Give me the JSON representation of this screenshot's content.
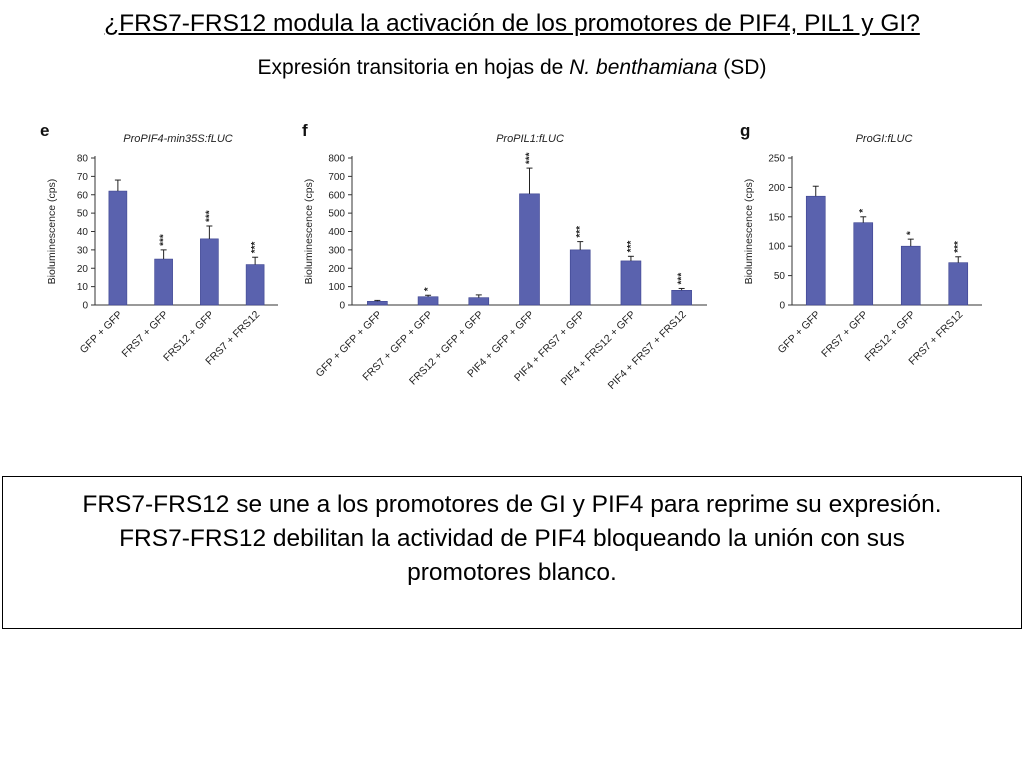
{
  "slide": {
    "title": "¿FRS7-FRS12 modula la activación de los promotores de PIF4, PIL1 y GI?",
    "subtitle_pre": "Expresión transitoria en hojas de ",
    "subtitle_italic": "N. benthamiana",
    "subtitle_post": " (SD)",
    "conclusion_lines": [
      "FRS7-FRS12 se une a los promotores de GI y PIF4 para reprime su expresión.",
      "FRS7-FRS12 debilitan la actividad de PIF4 bloqueando la unión con sus",
      "promotores blanco."
    ]
  },
  "colors": {
    "bar": "#5a62ae",
    "axis": "#333333"
  },
  "chart_data": [
    {
      "type": "bar",
      "panel_label": "e",
      "title": "ProPIF4-min35S:fLUC",
      "ylabel": "Bioluminescence (cps)",
      "ylim": [
        0,
        80
      ],
      "yticks": [
        0,
        10,
        20,
        30,
        40,
        50,
        60,
        70,
        80
      ],
      "categories": [
        "GFP + GFP",
        "FRS7 + GFP",
        "FRS12 + GFP",
        "FRS7 + FRS12"
      ],
      "values": [
        62,
        25,
        36,
        22
      ],
      "errors": [
        6,
        5,
        7,
        4
      ],
      "significance": [
        "",
        "***",
        "***",
        "***"
      ]
    },
    {
      "type": "bar",
      "panel_label": "f",
      "title": "ProPIL1:fLUC",
      "ylabel": "Bioluminescence (cps)",
      "ylim": [
        0,
        800
      ],
      "yticks": [
        0,
        100,
        200,
        300,
        400,
        500,
        600,
        700,
        800
      ],
      "categories": [
        "GFP + GFP + GFP",
        "FRS7 + GFP + GFP",
        "FRS12 + GFP + GFP",
        "PIF4 + GFP + GFP",
        "PIF4 + FRS7 + GFP",
        "PIF4 + FRS12 + GFP",
        "PIF4 + FRS7 + FRS12"
      ],
      "values": [
        20,
        45,
        40,
        605,
        300,
        240,
        80
      ],
      "errors": [
        5,
        8,
        15,
        140,
        45,
        25,
        10
      ],
      "significance": [
        "",
        "*",
        "",
        "***",
        "***",
        "***",
        "***"
      ]
    },
    {
      "type": "bar",
      "panel_label": "g",
      "title": "ProGI:fLUC",
      "ylabel": "Bioluminescence (cps)",
      "ylim": [
        0,
        250
      ],
      "yticks": [
        0,
        50,
        100,
        150,
        200,
        250
      ],
      "categories": [
        "GFP + GFP",
        "FRS7 + GFP",
        "FRS12 + GFP",
        "FRS7 + FRS12"
      ],
      "values": [
        185,
        140,
        100,
        72
      ],
      "errors": [
        17,
        10,
        12,
        10
      ],
      "significance": [
        "",
        "*",
        "*",
        "***"
      ]
    }
  ]
}
